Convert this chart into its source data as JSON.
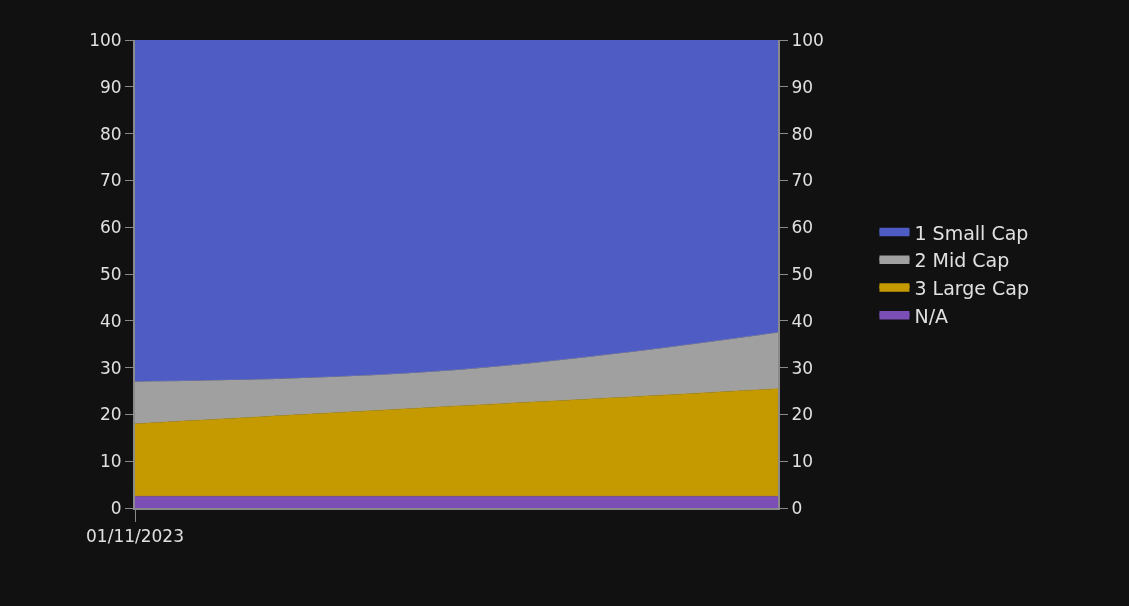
{
  "chart_data": {
    "type": "area",
    "stacked": true,
    "categories": [
      "01/11/2023",
      null,
      null,
      null,
      null
    ],
    "series": [
      {
        "name": "N/A",
        "color": "#7b4fb5",
        "values": [
          2.5,
          2.5,
          2.5,
          2.5,
          2.5
        ]
      },
      {
        "name": "3 Large Cap",
        "color": "#c49a00",
        "values": [
          15.5,
          17.4,
          19.3,
          21.1,
          23
        ]
      },
      {
        "name": "2 Mid Cap",
        "color": "#a0a0a0",
        "values": [
          9,
          7.8,
          7.7,
          9.4,
          12
        ]
      },
      {
        "name": "1 Small Cap",
        "color": "#4f5cc4",
        "values": [
          73,
          72.3,
          70.5,
          67,
          62.5
        ]
      }
    ],
    "ylim": [
      0,
      100
    ],
    "yticks": [
      0,
      10,
      20,
      30,
      40,
      50,
      60,
      70,
      80,
      90,
      100
    ],
    "y2lim": [
      0,
      100
    ],
    "y2ticks": [
      0,
      10,
      20,
      30,
      40,
      50,
      60,
      70,
      80,
      90,
      100
    ],
    "legend": "right",
    "grid": false
  }
}
